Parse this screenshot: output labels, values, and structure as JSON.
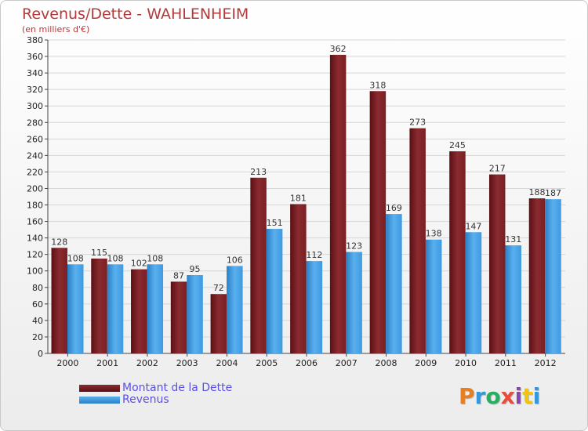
{
  "chart_data": {
    "type": "bar",
    "title": "Revenus/Dette - WAHLENHEIM",
    "subtitle": "(en milliers d'€)",
    "categories": [
      "2000",
      "2001",
      "2002",
      "2003",
      "2004",
      "2005",
      "2006",
      "2007",
      "2008",
      "2009",
      "2010",
      "2011",
      "2012"
    ],
    "series": [
      {
        "name": "Montant de la Dette",
        "values": [
          128,
          115,
          102,
          87,
          72,
          213,
          181,
          362,
          318,
          273,
          245,
          217,
          188
        ],
        "color": "#7a1f23"
      },
      {
        "name": "Revenus",
        "values": [
          108,
          108,
          108,
          95,
          106,
          151,
          112,
          123,
          169,
          138,
          147,
          131,
          187
        ],
        "color": "#3d9ae0"
      }
    ],
    "ylim": [
      0,
      380
    ],
    "ytick_step": 20,
    "grid": true,
    "legend": "bottom-left"
  },
  "logo": {
    "letters": [
      "P",
      "r",
      "o",
      "x",
      "i",
      "t",
      "i"
    ],
    "colors": [
      "#e67e22",
      "#3498db",
      "#27ae60",
      "#e74c3c",
      "#8e44ad",
      "#f1c40f",
      "#3498db"
    ]
  }
}
